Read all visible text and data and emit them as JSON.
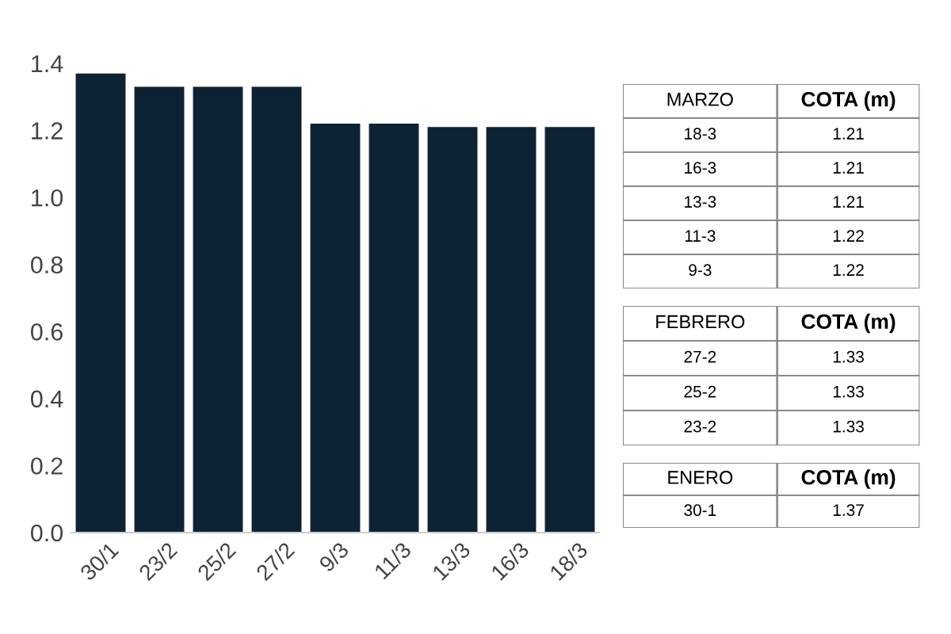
{
  "chart_data": [
    {
      "type": "bar",
      "categories": [
        "30/1",
        "23/2",
        "25/2",
        "27/2",
        "9/3",
        "11/3",
        "13/3",
        "16/3",
        "18/3"
      ],
      "values": [
        1.37,
        1.33,
        1.33,
        1.33,
        1.22,
        1.22,
        1.21,
        1.21,
        1.21
      ],
      "color": "#0d2333",
      "ylim": [
        0,
        1.4
      ],
      "yticks": [
        {
          "value": 0,
          "label": "0.0"
        },
        {
          "value": 0.2,
          "label": "0.2"
        },
        {
          "value": 0.4,
          "label": "0.4"
        },
        {
          "value": 0.6,
          "label": "0.6"
        },
        {
          "value": 0.8,
          "label": "0.8"
        },
        {
          "value": 1.0,
          "label": "1.0"
        },
        {
          "value": 1.2,
          "label": "1.2"
        },
        {
          "value": 1.4,
          "label": "1.4"
        }
      ],
      "grid": false
    },
    {
      "type": "other",
      "xlabel": "MARZO",
      "ylabel": "COTA (m)",
      "categories": [
        "18-3",
        "16-3",
        "13-3",
        "11-3",
        "9-3"
      ],
      "values": [
        1.21,
        1.21,
        1.21,
        1.22,
        1.22
      ],
      "data_labels": true
    },
    {
      "type": "other",
      "xlabel": "FEBRERO",
      "ylabel": "COTA (m)",
      "categories": [
        "27-2",
        "25-2",
        "23-2"
      ],
      "values": [
        1.33,
        1.33,
        1.33
      ],
      "data_labels": true
    },
    {
      "type": "other",
      "xlabel": "ENERO",
      "ylabel": "COTA (m)",
      "categories": [
        "30-1"
      ],
      "values": [
        1.37
      ],
      "data_labels": true
    }
  ]
}
